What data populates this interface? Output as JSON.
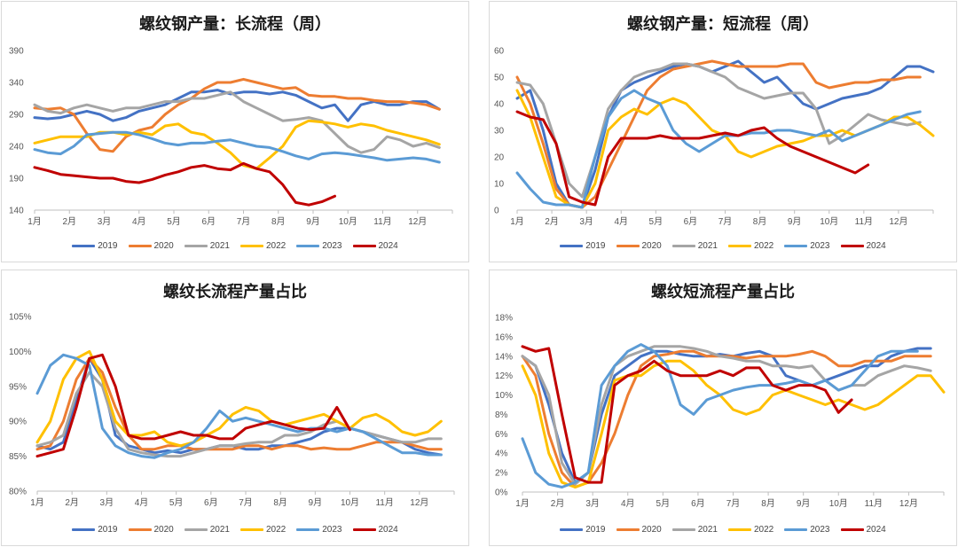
{
  "colors": {
    "2019": "#4472c4",
    "2020": "#ed7d31",
    "2021": "#a5a5a5",
    "2022": "#ffc000",
    "2023": "#5b9bd5",
    "2024": "#c00000"
  },
  "chart_data": [
    {
      "type": "line",
      "title": "螺纹钢产量：长流程（周）",
      "x_ticks": [
        "1月",
        "2月",
        "3月",
        "4月",
        "5月",
        "6月",
        "7月",
        "8月",
        "9月",
        "10月",
        "11月",
        "12月"
      ],
      "y_ticks": [
        "390",
        "340",
        "290",
        "240",
        "190",
        "140"
      ],
      "ylim": [
        140,
        390
      ],
      "series": [
        {
          "name": "2019",
          "color": "#4472c4",
          "values": [
            285,
            283,
            285,
            290,
            295,
            290,
            280,
            285,
            295,
            300,
            305,
            315,
            325,
            325,
            328,
            322,
            325,
            325,
            322,
            325,
            320,
            310,
            300,
            305,
            280,
            305,
            310,
            305,
            305,
            310,
            310,
            298
          ]
        },
        {
          "name": "2020",
          "color": "#ed7d31",
          "values": [
            300,
            298,
            300,
            290,
            260,
            235,
            232,
            255,
            265,
            270,
            290,
            305,
            315,
            330,
            340,
            340,
            345,
            340,
            335,
            330,
            332,
            320,
            318,
            318,
            315,
            315,
            312,
            310,
            310,
            308,
            305,
            298
          ]
        },
        {
          "name": "2021",
          "color": "#a5a5a5",
          "values": [
            305,
            295,
            292,
            300,
            305,
            300,
            295,
            300,
            300,
            305,
            310,
            310,
            315,
            315,
            320,
            325,
            310,
            300,
            290,
            280,
            282,
            285,
            280,
            260,
            240,
            230,
            235,
            255,
            250,
            240,
            245,
            238
          ]
        },
        {
          "name": "2022",
          "color": "#ffc000",
          "values": [
            245,
            250,
            255,
            255,
            255,
            262,
            262,
            258,
            262,
            258,
            272,
            275,
            262,
            258,
            245,
            230,
            210,
            205,
            222,
            240,
            270,
            280,
            278,
            275,
            270,
            275,
            272,
            265,
            260,
            255,
            250,
            243
          ]
        },
        {
          "name": "2023",
          "color": "#5b9bd5",
          "values": [
            235,
            230,
            228,
            240,
            258,
            260,
            262,
            262,
            258,
            252,
            245,
            242,
            245,
            245,
            248,
            250,
            245,
            240,
            238,
            232,
            225,
            220,
            228,
            230,
            228,
            225,
            222,
            218,
            220,
            222,
            220,
            215
          ]
        },
        {
          "name": "2024",
          "color": "#c00000",
          "values": [
            207,
            202,
            196,
            194,
            192,
            190,
            190,
            185,
            183,
            188,
            195,
            200,
            207,
            210,
            205,
            203,
            213,
            205,
            200,
            180,
            152,
            148,
            153,
            162
          ]
        }
      ]
    },
    {
      "type": "line",
      "title": "螺纹钢产量：短流程（周）",
      "x_ticks": [
        "1月",
        "2月",
        "3月",
        "4月",
        "5月",
        "6月",
        "7月",
        "8月",
        "9月",
        "10月",
        "11月",
        "12月"
      ],
      "y_ticks": [
        "60",
        "50",
        "40",
        "30",
        "20",
        "10",
        "0"
      ],
      "ylim": [
        0,
        60
      ],
      "series": [
        {
          "name": "2019",
          "color": "#4472c4",
          "values": [
            42,
            45,
            30,
            10,
            2,
            1,
            15,
            35,
            45,
            48,
            50,
            52,
            54,
            55,
            54,
            52,
            54,
            56,
            52,
            48,
            50,
            45,
            40,
            38,
            40,
            42,
            43,
            44,
            46,
            50,
            54,
            54,
            52
          ]
        },
        {
          "name": "2020",
          "color": "#ed7d31",
          "values": [
            50,
            40,
            25,
            8,
            2,
            1,
            5,
            15,
            25,
            35,
            45,
            50,
            53,
            54,
            55,
            56,
            55,
            54,
            54,
            54,
            54,
            55,
            55,
            48,
            46,
            47,
            48,
            48,
            49,
            49,
            50,
            50
          ]
        },
        {
          "name": "2021",
          "color": "#a5a5a5",
          "values": [
            48,
            47,
            40,
            25,
            10,
            5,
            20,
            38,
            45,
            50,
            52,
            53,
            55,
            55,
            54,
            52,
            50,
            46,
            44,
            42,
            43,
            44,
            44,
            38,
            25,
            28,
            32,
            36,
            34,
            33,
            32,
            33
          ]
        },
        {
          "name": "2022",
          "color": "#ffc000",
          "values": [
            45,
            35,
            20,
            5,
            2,
            1,
            10,
            30,
            35,
            38,
            36,
            40,
            42,
            40,
            35,
            30,
            28,
            22,
            20,
            22,
            24,
            25,
            26,
            28,
            28,
            30,
            28,
            30,
            32,
            35,
            35,
            32,
            28
          ]
        },
        {
          "name": "2023",
          "color": "#5b9bd5",
          "values": [
            14,
            8,
            3,
            2,
            2,
            1,
            20,
            35,
            42,
            45,
            42,
            40,
            30,
            25,
            22,
            25,
            28,
            28,
            29,
            29,
            30,
            30,
            29,
            28,
            30,
            26,
            28,
            30,
            32,
            34,
            36,
            37
          ]
        },
        {
          "name": "2024",
          "color": "#c00000",
          "values": [
            37,
            35,
            34,
            25,
            5,
            3,
            2,
            20,
            27,
            27,
            27,
            28,
            27,
            27,
            27,
            28,
            29,
            28,
            30,
            31,
            27,
            24,
            22,
            20,
            18,
            16,
            14,
            17
          ]
        }
      ]
    },
    {
      "type": "line",
      "title": "螺纹长流程产量占比",
      "x_ticks": [
        "1月",
        "2月",
        "3月",
        "4月",
        "5月",
        "6月",
        "7月",
        "8月",
        "9月",
        "10月",
        "11月",
        "12月"
      ],
      "y_ticks": [
        "105%",
        "100%",
        "95%",
        "90%",
        "85%",
        "80%"
      ],
      "ylim": [
        80,
        105
      ],
      "series": [
        {
          "name": "2019",
          "color": "#4472c4",
          "values": [
            86.5,
            86,
            87,
            93,
            99,
            96,
            88,
            86.5,
            86,
            85.5,
            85.8,
            85.5,
            86,
            86,
            86.5,
            86.5,
            86,
            86,
            86.5,
            86.5,
            87,
            87.5,
            88.5,
            89,
            89,
            88.5,
            88,
            87.5,
            87,
            86,
            85.5,
            85.2
          ]
        },
        {
          "name": "2020",
          "color": "#ed7d31",
          "values": [
            86,
            86.5,
            90,
            96,
            99,
            97,
            92,
            88,
            86,
            86,
            86.5,
            86.5,
            86,
            86,
            86,
            86,
            86.5,
            86.5,
            86,
            86.5,
            86.5,
            86,
            86.2,
            86,
            86,
            86.5,
            87,
            87,
            87,
            86.5,
            86,
            86
          ]
        },
        {
          "name": "2021",
          "color": "#a5a5a5",
          "values": [
            86.5,
            87,
            88,
            94,
            97,
            95,
            89,
            86,
            85.5,
            85.2,
            85,
            85,
            85.5,
            86,
            86.5,
            86.5,
            86.8,
            87,
            87,
            88,
            88,
            88.5,
            89.5,
            90,
            89,
            88.5,
            88,
            87.5,
            87,
            87,
            87.5,
            87.5
          ]
        },
        {
          "name": "2022",
          "color": "#ffc000",
          "values": [
            87,
            90,
            96,
            99,
            100,
            96,
            90,
            88,
            88,
            88.5,
            87,
            86.5,
            87,
            88,
            89,
            91,
            92,
            91.5,
            90,
            89.5,
            90,
            90.5,
            91,
            90,
            89,
            90.5,
            91,
            90,
            88.5,
            88,
            88.5,
            90
          ]
        },
        {
          "name": "2023",
          "color": "#5b9bd5",
          "values": [
            94,
            98,
            99.5,
            99,
            98,
            89,
            86.5,
            85.5,
            85,
            84.8,
            85.5,
            86,
            87,
            89,
            91.5,
            90,
            90.5,
            90,
            89.5,
            89,
            88.5,
            89,
            89,
            88.5,
            89,
            88.5,
            87.5,
            86.5,
            85.5,
            85.5,
            85.2,
            85.2
          ]
        },
        {
          "name": "2024",
          "color": "#c00000",
          "values": [
            85,
            85.5,
            86,
            92,
            99,
            99.5,
            95,
            88,
            87.5,
            87.5,
            88,
            88.5,
            88,
            88,
            87.5,
            87.5,
            89,
            89.5,
            90,
            89.5,
            89,
            88.8,
            89,
            92,
            88.8
          ]
        }
      ]
    },
    {
      "type": "line",
      "title": "螺纹短流程产量占比",
      "x_ticks": [
        "1月",
        "2月",
        "3月",
        "4月",
        "5月",
        "6月",
        "7月",
        "8月",
        "9月",
        "10月",
        "11月",
        "12月"
      ],
      "y_ticks": [
        "18%",
        "16%",
        "14%",
        "12%",
        "10%",
        "8%",
        "6%",
        "4%",
        "2%",
        "0%"
      ],
      "ylim": [
        0,
        18
      ],
      "series": [
        {
          "name": "2019",
          "color": "#4472c4",
          "values": [
            14,
            13,
            9,
            4,
            1,
            2,
            8,
            12,
            13,
            14,
            14.5,
            14.5,
            14.2,
            14,
            14,
            14.2,
            14,
            14.3,
            14.5,
            14,
            12,
            11.5,
            11,
            11.5,
            12,
            12.5,
            13,
            13,
            14,
            14.5,
            14.8,
            14.8
          ]
        },
        {
          "name": "2020",
          "color": "#ed7d31",
          "values": [
            14,
            12,
            6,
            2,
            0.5,
            1,
            3,
            6,
            10,
            13,
            14,
            14.2,
            14.5,
            14.5,
            14,
            14,
            14,
            13.8,
            14,
            14,
            14,
            14.2,
            14.5,
            14,
            13,
            13,
            13.5,
            13.5,
            13.5,
            14,
            14,
            14
          ]
        },
        {
          "name": "2021",
          "color": "#a5a5a5",
          "values": [
            14,
            13,
            10,
            3,
            0.8,
            2,
            9,
            13,
            14,
            14.5,
            15,
            15,
            15,
            14.8,
            14.5,
            14,
            13.8,
            13.5,
            13.5,
            13,
            13,
            12.8,
            13,
            11.5,
            10.5,
            11,
            11,
            12,
            12.5,
            13,
            12.8,
            12.5
          ]
        },
        {
          "name": "2022",
          "color": "#ffc000",
          "values": [
            13,
            10,
            4,
            1,
            0.5,
            1,
            6,
            11.5,
            12,
            12,
            13,
            13.5,
            13.5,
            12.5,
            11,
            10,
            8.5,
            8,
            8.5,
            10,
            10.5,
            10,
            9.5,
            9,
            9.5,
            9,
            8.5,
            9,
            10,
            11,
            12,
            12,
            10.3
          ]
        },
        {
          "name": "2023",
          "color": "#5b9bd5",
          "values": [
            5.5,
            2,
            0.8,
            0.5,
            1,
            2,
            11,
            13,
            14.5,
            15.2,
            14.5,
            13,
            9,
            8,
            9.5,
            10,
            10.5,
            10.8,
            11,
            11,
            11.2,
            11.5,
            11,
            11.5,
            10.5,
            11,
            12.5,
            14,
            14.5,
            14.5,
            14.5
          ]
        },
        {
          "name": "2024",
          "color": "#c00000",
          "values": [
            15,
            14.5,
            14.8,
            8,
            1.5,
            1,
            1,
            11,
            12,
            12.5,
            13.5,
            12.5,
            12,
            12,
            12,
            12.5,
            12,
            12.8,
            12.8,
            11,
            10.5,
            11,
            11,
            10.5,
            8.2,
            9.5
          ]
        }
      ]
    }
  ]
}
